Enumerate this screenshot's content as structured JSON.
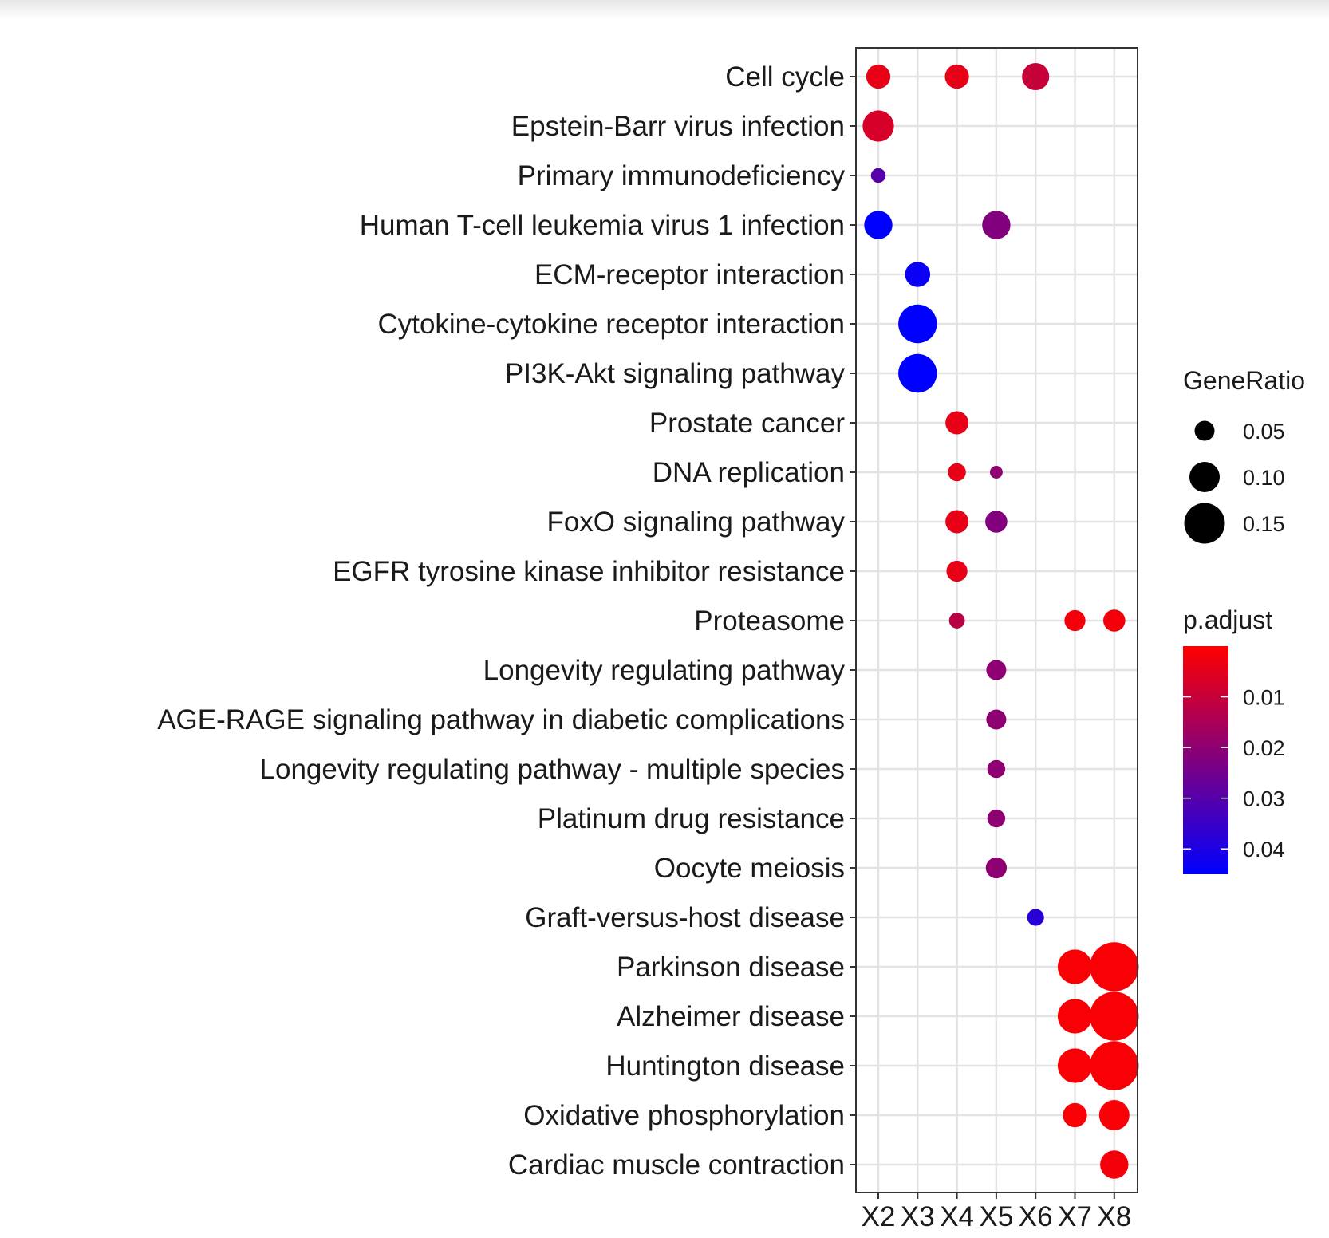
{
  "chart_data": {
    "type": "scatter",
    "title": "",
    "xlabel": "",
    "ylabel": "",
    "x_categories": [
      "X2",
      "X3",
      "X4",
      "X5",
      "X6",
      "X7",
      "X8"
    ],
    "y_categories": [
      "Cell cycle",
      "Epstein-Barr virus infection",
      "Primary immunodeficiency",
      "Human T-cell leukemia virus 1 infection",
      "ECM-receptor interaction",
      "Cytokine-cytokine receptor interaction",
      "PI3K-Akt signaling pathway",
      "Prostate cancer",
      "DNA replication",
      "FoxO signaling pathway",
      "EGFR tyrosine kinase inhibitor resistance",
      "Proteasome",
      "Longevity regulating pathway",
      "AGE-RAGE signaling pathway in diabetic complications",
      "Longevity regulating pathway - multiple species",
      "Platinum drug resistance",
      "Oocyte meiosis",
      "Graft-versus-host disease",
      "Parkinson disease",
      "Alzheimer disease",
      "Huntington disease",
      "Oxidative phosphorylation",
      "Cardiac muscle contraction"
    ],
    "points": [
      {
        "x": "X2",
        "y": "Cell cycle",
        "GeneRatio": 0.07,
        "p.adjust": 0.004
      },
      {
        "x": "X4",
        "y": "Cell cycle",
        "GeneRatio": 0.07,
        "p.adjust": 0.004
      },
      {
        "x": "X6",
        "y": "Cell cycle",
        "GeneRatio": 0.085,
        "p.adjust": 0.01
      },
      {
        "x": "X2",
        "y": "Epstein-Barr virus infection",
        "GeneRatio": 0.105,
        "p.adjust": 0.007
      },
      {
        "x": "X2",
        "y": "Primary immunodeficiency",
        "GeneRatio": 0.025,
        "p.adjust": 0.03
      },
      {
        "x": "X2",
        "y": "Human T-cell leukemia virus 1 infection",
        "GeneRatio": 0.09,
        "p.adjust": 0.045
      },
      {
        "x": "X5",
        "y": "Human T-cell leukemia virus 1 infection",
        "GeneRatio": 0.09,
        "p.adjust": 0.022
      },
      {
        "x": "X3",
        "y": "ECM-receptor interaction",
        "GeneRatio": 0.075,
        "p.adjust": 0.043
      },
      {
        "x": "X3",
        "y": "Cytokine-cytokine receptor interaction",
        "GeneRatio": 0.14,
        "p.adjust": 0.045
      },
      {
        "x": "X3",
        "y": "PI3K-Akt signaling pathway",
        "GeneRatio": 0.14,
        "p.adjust": 0.045
      },
      {
        "x": "X4",
        "y": "Prostate cancer",
        "GeneRatio": 0.065,
        "p.adjust": 0.004
      },
      {
        "x": "X4",
        "y": "DNA replication",
        "GeneRatio": 0.04,
        "p.adjust": 0.004
      },
      {
        "x": "X5",
        "y": "DNA replication",
        "GeneRatio": 0.015,
        "p.adjust": 0.02
      },
      {
        "x": "X4",
        "y": "FoxO signaling pathway",
        "GeneRatio": 0.065,
        "p.adjust": 0.004
      },
      {
        "x": "X5",
        "y": "FoxO signaling pathway",
        "GeneRatio": 0.06,
        "p.adjust": 0.022
      },
      {
        "x": "X4",
        "y": "EGFR tyrosine kinase inhibitor resistance",
        "GeneRatio": 0.055,
        "p.adjust": 0.004
      },
      {
        "x": "X4",
        "y": "Proteasome",
        "GeneRatio": 0.03,
        "p.adjust": 0.012
      },
      {
        "x": "X7",
        "y": "Proteasome",
        "GeneRatio": 0.055,
        "p.adjust": 0.002
      },
      {
        "x": "X8",
        "y": "Proteasome",
        "GeneRatio": 0.06,
        "p.adjust": 0.002
      },
      {
        "x": "X5",
        "y": "Longevity regulating pathway",
        "GeneRatio": 0.05,
        "p.adjust": 0.02
      },
      {
        "x": "X5",
        "y": "AGE-RAGE signaling pathway in diabetic complications",
        "GeneRatio": 0.05,
        "p.adjust": 0.02
      },
      {
        "x": "X5",
        "y": "Longevity regulating pathway - multiple species",
        "GeneRatio": 0.04,
        "p.adjust": 0.02
      },
      {
        "x": "X5",
        "y": "Platinum drug resistance",
        "GeneRatio": 0.04,
        "p.adjust": 0.02
      },
      {
        "x": "X5",
        "y": "Oocyte meiosis",
        "GeneRatio": 0.055,
        "p.adjust": 0.02
      },
      {
        "x": "X6",
        "y": "Graft-versus-host disease",
        "GeneRatio": 0.035,
        "p.adjust": 0.038
      },
      {
        "x": "X7",
        "y": "Parkinson disease",
        "GeneRatio": 0.12,
        "p.adjust": 0.001
      },
      {
        "x": "X8",
        "y": "Parkinson disease",
        "GeneRatio": 0.19,
        "p.adjust": 0.001
      },
      {
        "x": "X7",
        "y": "Alzheimer disease",
        "GeneRatio": 0.12,
        "p.adjust": 0.001
      },
      {
        "x": "X8",
        "y": "Alzheimer disease",
        "GeneRatio": 0.19,
        "p.adjust": 0.001
      },
      {
        "x": "X7",
        "y": "Huntington disease",
        "GeneRatio": 0.12,
        "p.adjust": 0.001
      },
      {
        "x": "X8",
        "y": "Huntington disease",
        "GeneRatio": 0.19,
        "p.adjust": 0.001
      },
      {
        "x": "X7",
        "y": "Oxidative phosphorylation",
        "GeneRatio": 0.07,
        "p.adjust": 0.001
      },
      {
        "x": "X8",
        "y": "Oxidative phosphorylation",
        "GeneRatio": 0.1,
        "p.adjust": 0.001
      },
      {
        "x": "X8",
        "y": "Cardiac muscle contraction",
        "GeneRatio": 0.09,
        "p.adjust": 0.002
      }
    ],
    "size_legend": {
      "title": "GeneRatio",
      "labels": [
        "0.05",
        "0.10",
        "0.15"
      ],
      "values": [
        0.05,
        0.1,
        0.15
      ]
    },
    "color_legend": {
      "title": "p.adjust",
      "labels": [
        "0.01",
        "0.02",
        "0.03",
        "0.04"
      ],
      "values": [
        0.01,
        0.02,
        0.03,
        0.04
      ],
      "range": [
        0.0,
        0.045
      ],
      "low_color": "#ff0000",
      "high_color": "#0000ff"
    },
    "grid": true,
    "legend_position": "right"
  }
}
